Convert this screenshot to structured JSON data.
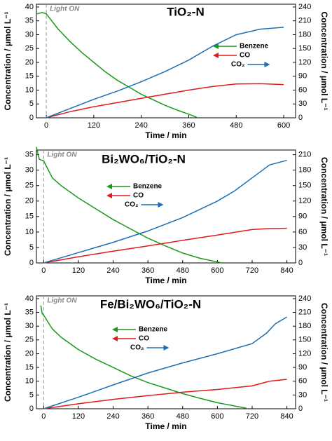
{
  "chart_data": [
    {
      "type": "line",
      "title": "TiO₂-N",
      "annotation": "Light ON",
      "xlabel": "Time / min",
      "ylabel": "Concentration / μmol L⁻¹",
      "y2label": "Concentration / μmol L⁻¹",
      "xlim": [
        -25,
        630
      ],
      "xticks": [
        0,
        120,
        240,
        360,
        480,
        600
      ],
      "ylim": [
        0,
        41
      ],
      "yticks": [
        0,
        5,
        10,
        15,
        20,
        25,
        30,
        35,
        40
      ],
      "y2lim": [
        0,
        246
      ],
      "y2ticks": [
        0,
        30,
        60,
        90,
        120,
        150,
        180,
        210,
        240
      ],
      "series": [
        {
          "name": "Benzene",
          "color": "#1a9a1a",
          "x": [
            -25,
            -10,
            0,
            30,
            60,
            90,
            120,
            150,
            180,
            210,
            240,
            270,
            300,
            330,
            360,
            380
          ],
          "values": [
            37.5,
            38,
            37.5,
            32,
            27.5,
            23.5,
            20,
            16.5,
            13.5,
            11,
            8.5,
            6.5,
            4.5,
            2.8,
            1.3,
            0.2
          ]
        },
        {
          "name": "CO",
          "color": "#e01b1b",
          "x": [
            0,
            60,
            120,
            180,
            240,
            300,
            360,
            420,
            480,
            540,
            600
          ],
          "values": [
            0,
            2.2,
            4,
            5.5,
            7,
            8.5,
            10,
            11.3,
            12.2,
            12.3,
            12
          ]
        },
        {
          "name": "CO₂",
          "color": "#1a6fb5",
          "axis": "y2",
          "x": [
            0,
            60,
            120,
            180,
            240,
            300,
            360,
            420,
            480,
            540,
            600
          ],
          "values": [
            0,
            20,
            40,
            58,
            78,
            100,
            125,
            155,
            180,
            192,
            196
          ]
        }
      ]
    },
    {
      "type": "line",
      "title": "Bi₂WO₆/TiO₂-N",
      "annotation": "Light ON",
      "xlabel": "Time / min",
      "ylabel": "Concentration / μmol L⁻¹",
      "y2label": "Concentration / μmol L⁻¹",
      "xlim": [
        -25,
        870
      ],
      "xticks": [
        0,
        120,
        240,
        360,
        480,
        600,
        720,
        840
      ],
      "ylim": [
        0,
        36.5
      ],
      "yticks": [
        0,
        5,
        10,
        15,
        20,
        25,
        30,
        35
      ],
      "y2lim": [
        0,
        219
      ],
      "y2ticks": [
        0,
        30,
        60,
        90,
        120,
        150,
        180,
        210
      ],
      "series": [
        {
          "name": "Benzene",
          "color": "#1a9a1a",
          "x": [
            -25,
            -15,
            0,
            30,
            60,
            120,
            180,
            240,
            300,
            360,
            420,
            480,
            540,
            600,
            615
          ],
          "values": [
            37.5,
            33.5,
            33,
            27.5,
            25,
            21,
            17.5,
            14,
            11,
            8,
            5.5,
            3.2,
            1.5,
            0.3,
            0
          ]
        },
        {
          "name": "CO",
          "color": "#e01b1b",
          "x": [
            0,
            120,
            240,
            360,
            480,
            600,
            720,
            780,
            840
          ],
          "values": [
            0,
            2,
            3.8,
            5.5,
            7.3,
            9,
            10.8,
            11.1,
            11.2
          ]
        },
        {
          "name": "CO₂",
          "color": "#1a6fb5",
          "axis": "y2",
          "x": [
            0,
            30,
            120,
            240,
            360,
            480,
            600,
            660,
            720,
            780,
            840
          ],
          "values": [
            0,
            5,
            20,
            40,
            62,
            88,
            120,
            140,
            165,
            190,
            199
          ]
        }
      ]
    },
    {
      "type": "line",
      "title": "Fe/Bi₂WO₆/TiO₂-N",
      "annotation": "Light ON",
      "xlabel": "Time / min",
      "ylabel": "Concentration / μmol L⁻¹",
      "y2label": "Concentration / μmol L⁻¹",
      "xlim": [
        -25,
        870
      ],
      "xticks": [
        0,
        120,
        240,
        360,
        480,
        600,
        720,
        840
      ],
      "ylim": [
        0,
        41
      ],
      "yticks": [
        0,
        5,
        10,
        15,
        20,
        25,
        30,
        35,
        40
      ],
      "y2lim": [
        0,
        246
      ],
      "y2ticks": [
        0,
        30,
        60,
        90,
        120,
        150,
        180,
        210,
        240
      ],
      "series": [
        {
          "name": "Benzene",
          "color": "#1a9a1a",
          "x": [
            -10,
            -5,
            0,
            30,
            60,
            120,
            180,
            240,
            300,
            360,
            420,
            480,
            540,
            600,
            660,
            700
          ],
          "values": [
            37.5,
            34.5,
            34,
            29,
            26,
            21.5,
            18,
            15,
            12,
            9.5,
            7.5,
            5.5,
            3.8,
            2.2,
            1,
            0.2
          ]
        },
        {
          "name": "CO",
          "color": "#e01b1b",
          "x": [
            0,
            120,
            240,
            360,
            480,
            600,
            720,
            780,
            840
          ],
          "values": [
            0,
            1.8,
            3.4,
            4.8,
            6,
            7,
            8.3,
            10,
            10.7
          ]
        },
        {
          "name": "CO₂",
          "color": "#1a6fb5",
          "axis": "y2",
          "x": [
            0,
            120,
            240,
            360,
            480,
            600,
            720,
            770,
            800,
            840
          ],
          "values": [
            0,
            25,
            52,
            78,
            100,
            120,
            142,
            165,
            185,
            200
          ]
        }
      ]
    }
  ]
}
